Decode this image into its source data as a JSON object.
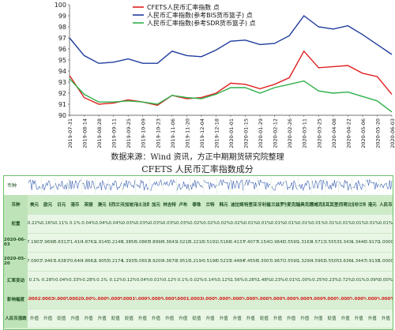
{
  "chart_data": {
    "type": "line",
    "ylim": [
      90,
      100
    ],
    "yticks": [
      90,
      91,
      92,
      93,
      94,
      95,
      96,
      97,
      98,
      99,
      100
    ],
    "x": [
      "2019-07-31",
      "2019-08-14",
      "2019-08-28",
      "2019-09-11",
      "2019-09-25",
      "2019-10-09",
      "2019-10-23",
      "2019-11-06",
      "2019-11-20",
      "2019-12-04",
      "2019-12-18",
      "2020-01-01",
      "2020-01-15",
      "2020-01-29",
      "2020-02-12",
      "2020-02-26",
      "2020-03-11",
      "2020-03-25",
      "2020-04-08",
      "2020-04-22",
      "2020-05-06",
      "2020-05-20",
      "2020-06-03"
    ],
    "series": [
      {
        "name": "CFETS人民币汇率指数 点",
        "color": "#e02020",
        "values": [
          93.6,
          91.6,
          91.0,
          91.1,
          91.4,
          91.2,
          90.9,
          91.8,
          91.5,
          91.6,
          92.0,
          92.9,
          92.8,
          92.4,
          92.8,
          93.4,
          95.8,
          94.3,
          94.4,
          94.5,
          93.8,
          93.5,
          91.9
        ]
      },
      {
        "name": "人民币汇率指数(参考BIS货币篮子) 点",
        "color": "#1f3c9c",
        "values": [
          97.0,
          95.4,
          94.7,
          94.8,
          95.1,
          94.7,
          94.7,
          95.8,
          95.4,
          95.3,
          95.9,
          96.7,
          96.8,
          96.4,
          96.5,
          97.2,
          99.0,
          98.0,
          97.8,
          98.1,
          97.3,
          96.4,
          95.5
        ]
      },
      {
        "name": "人民币汇率指数(参考SDR货币篮子) 点",
        "color": "#2db04a",
        "values": [
          93.3,
          91.9,
          91.2,
          91.2,
          91.3,
          91.2,
          91.0,
          91.8,
          91.6,
          91.5,
          91.9,
          92.5,
          92.5,
          92.0,
          92.5,
          92.8,
          93.1,
          92.2,
          92.0,
          92.1,
          91.7,
          91.3,
          90.3
        ]
      }
    ]
  },
  "source_text": "数据来源：Wind 资讯，方正中期期货研究院整理",
  "table_title": "CFETS 人民币汇率指数成分",
  "table": {
    "header_label": "币种",
    "currencies": [
      "美元",
      "欧元",
      "日元",
      "港币",
      "英镑",
      "澳元",
      "新西兰元",
      "新加坡元",
      "瑞士法郎",
      "加元",
      "林吉特",
      "卢布",
      "泰铢",
      "兰特",
      "韩元",
      "迪拉姆",
      "沙特里亚尔",
      "匈牙利福林",
      "波兰兹罗提",
      "丹麦克朗",
      "瑞典克朗",
      "挪威克朗",
      "土耳其里拉",
      "墨西哥比索",
      "南非兰特",
      "港元",
      "人民币"
    ],
    "rows": [
      {
        "label": "权重",
        "values": [
          "0.22%",
          "0.16%",
          "0.11%",
          "0.1%",
          "0.04%",
          "0.04%",
          "0.04%",
          "0.03%",
          "0.03%",
          "0.03%",
          "0.03%",
          "0.03%",
          "0.02%",
          "0.02%",
          "0.02%",
          "0.02%",
          "0.01%",
          "0.01%",
          "0.01%",
          "0.01%",
          "0.01%",
          "0.01%",
          "0.01%",
          "0.01%",
          "0.01%",
          "0.01%",
          "0.01%"
        ]
      },
      {
        "label": "2020-06-03",
        "values": [
          "7.1903",
          "7.9698",
          "6.6313",
          "171.4100",
          "4.8761",
          "1.9145",
          "0.2146",
          "1.3856",
          "5.0865",
          "8.8998",
          "4.3643",
          "9.0218",
          "5.2218",
          "0.5191",
          "0.5166",
          "2.4137",
          "7.4077",
          "3.1540",
          "0.9648",
          "0.5599",
          "1.3161",
          "4.5713",
          "0.5553",
          "43.3430",
          "1.3446",
          "0.9170",
          "1.0000"
        ]
      },
      {
        "label": "2020-05-20",
        "values": [
          "7.0903",
          "7.9467",
          "6.6387",
          "170.6400",
          "4.8662",
          "1.9055",
          "0.2174",
          "1.3935",
          "5.0651",
          "8.9209",
          "4.3679",
          "8.9519",
          "5.2194",
          "0.5198",
          "0.5233",
          "2.4484",
          "7.4556",
          "3.3007",
          "0.9670",
          "0.5599",
          "1.3299",
          "4.5961",
          "0.5505",
          "43.6360",
          "1.3447",
          "0.9138",
          "1.0000"
        ]
      },
      {
        "label": "汇率变动",
        "values": [
          "0.1%",
          "-0.28%",
          "-0.04%",
          "-0.33%",
          "-0.28%",
          "0.1%",
          "-0.12%",
          "-0.12%",
          "-0.04%",
          "-0.01%",
          "-0.12%",
          "0.1%",
          "0.02%",
          "-0.14%",
          "-0.12%",
          "1.56%",
          "-0.28%",
          "1.48%",
          "0.23%",
          "-0.01%",
          "1.00%",
          "-0.25%",
          "0.23%",
          "0.72%",
          "0.01%",
          "-0.09%",
          "0.00%"
        ]
      },
      {
        "label": "影响幅度",
        "values": [
          "0.0002%",
          "0.0003%",
          "0.000%",
          "0.0002%",
          "0.00%",
          "0.000%",
          "0.000%",
          "0.0001%",
          "0.000%",
          "0.000%",
          "0.000%",
          "0.0001%",
          "0.0003%",
          "0.000%",
          "0.000%",
          "0.000%",
          "0.000%",
          "0.000%",
          "0.000%",
          "0.000%",
          "0.000%",
          "0.000%",
          "0.000%",
          "0.000%",
          "0.000%",
          "0.000%",
          "0.000%"
        ]
      },
      {
        "label": "人民币涨跌",
        "values": [
          "升值",
          "升值",
          "贬值",
          "升值",
          "升值",
          "升值",
          "贬值",
          "贬值",
          "升值",
          "升值",
          "升值",
          "升值",
          "贬值",
          "升值",
          "升值",
          "升值",
          "升值",
          "贬值",
          "升值",
          "升值",
          "升值",
          "升值",
          "贬值",
          "升值",
          "升值",
          "升值",
          "升值"
        ]
      }
    ]
  }
}
